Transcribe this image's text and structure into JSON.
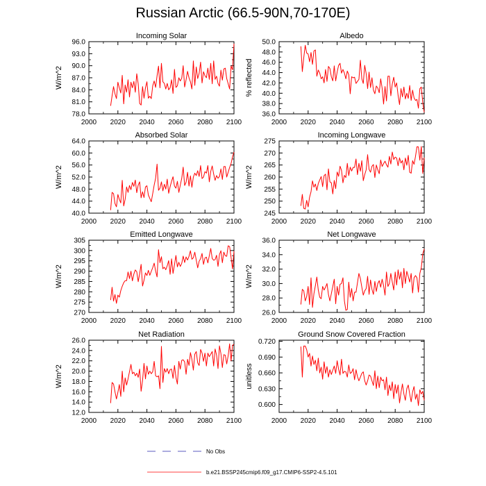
{
  "title": "Russian Arctic (66.5-90N,70-170E)",
  "legend": {
    "obs_label": "No Obs",
    "model_label": "b.e21.BSSP245cmip6.f09_g17.CMIP6-SSP2-4.5.101",
    "obs_color": "#2222aa",
    "model_color": "#ff0000"
  },
  "chart_data": [
    {
      "type": "line",
      "title": "Incoming Solar",
      "ylabel": "W/m^2",
      "xlim": [
        2000,
        2100
      ],
      "xticks": [
        2000,
        2020,
        2040,
        2060,
        2080,
        2100
      ],
      "ylim": [
        78,
        96
      ],
      "yticks": [
        "96.0",
        "93.0",
        "90.0",
        "87.0",
        "84.0",
        "81.0",
        "78.0"
      ],
      "ytick_values": [
        96,
        93,
        90,
        87,
        84,
        81,
        78
      ],
      "x_start": 2015,
      "values": [
        80.0,
        82.5,
        84.8,
        83.0,
        81.8,
        85.9,
        84.5,
        83.2,
        87.6,
        80.5,
        85.2,
        83.4,
        86.5,
        82.2,
        85.9,
        84.5,
        86.1,
        83.4,
        88.0,
        85.5,
        80.6,
        80.2,
        84.8,
        81.9,
        84.5,
        86.0,
        81.9,
        82.4,
        81.8,
        85.0,
        86.2,
        84.6,
        87.5,
        89.9,
        84.5,
        90.6,
        86.0,
        85.6,
        84.2,
        85.6,
        84.0,
        84.5,
        86.5,
        83.1,
        89.1,
        84.6,
        85.0,
        87.0,
        86.2,
        86.9,
        90.0,
        84.7,
        86.5,
        88.6,
        87.0,
        86.0,
        84.2,
        91.2,
        85.1,
        89.7,
        86.8,
        88.1,
        90.9,
        85.7,
        88.5,
        87.5,
        87.0,
        89.4,
        86.6,
        90.6,
        85.5,
        91.2,
        86.6,
        87.4,
        85.6,
        84.9,
        88.9,
        86.4,
        89.2,
        89.4,
        86.8,
        85.5,
        84.2,
        89.9,
        89.0,
        95.5
      ]
    },
    {
      "type": "line",
      "title": "Albedo",
      "ylabel": "% reflected",
      "xlim": [
        2000,
        2100
      ],
      "xticks": [
        2000,
        2020,
        2040,
        2060,
        2080,
        2100
      ],
      "ylim": [
        36,
        50
      ],
      "yticks": [
        "50.0",
        "48.0",
        "46.0",
        "44.0",
        "42.0",
        "40.0",
        "38.0",
        "36.0"
      ],
      "ytick_values": [
        50,
        48,
        46,
        44,
        42,
        40,
        38,
        36
      ],
      "x_start": 2015,
      "values": [
        49.1,
        44.2,
        46.9,
        49.3,
        47.8,
        47.6,
        46.1,
        47.9,
        45.6,
        48.2,
        48.4,
        43.3,
        44.5,
        43.9,
        42.8,
        43.2,
        42.0,
        44.6,
        42.3,
        45.2,
        44.8,
        43.2,
        42.4,
        45.3,
        42.4,
        44.1,
        45.4,
        45.8,
        43.9,
        44.6,
        43.9,
        42.8,
        44.3,
        43.6,
        39.9,
        43.2,
        43.0,
        43.1,
        41.9,
        42.3,
        42.7,
        46.4,
        42.8,
        41.9,
        45.4,
        43.8,
        40.9,
        44.1,
        41.1,
        43.0,
        40.6,
        39.9,
        41.4,
        41.0,
        40.1,
        42.8,
        41.0,
        37.9,
        41.3,
        38.5,
        43.3,
        43.3,
        39.5,
        41.8,
        43.1,
        41.2,
        42.0,
        39.6,
        37.8,
        40.9,
        39.3,
        41.2,
        38.9,
        40.0,
        39.0,
        41.5,
        38.6,
        40.6,
        39.1,
        38.6,
        38.8,
        37.1,
        40.9,
        41.2,
        38.2,
        36.3
      ]
    },
    {
      "type": "line",
      "title": "Absorbed Solar",
      "ylabel": "W/m^2",
      "xlim": [
        2000,
        2100
      ],
      "xticks": [
        2000,
        2020,
        2040,
        2060,
        2080,
        2100
      ],
      "ylim": [
        40,
        64
      ],
      "yticks": [
        "64.0",
        "60.0",
        "56.0",
        "52.0",
        "48.0",
        "44.0",
        "40.0"
      ],
      "ytick_values": [
        64,
        60,
        56,
        52,
        48,
        44,
        40
      ],
      "x_start": 2015,
      "values": [
        41.0,
        46.9,
        46.5,
        43.2,
        42.1,
        46.2,
        44.6,
        43.4,
        50.9,
        42.4,
        44.6,
        48.7,
        46.9,
        49.2,
        47.8,
        50.2,
        48.9,
        51.0,
        46.8,
        49.3,
        50.4,
        45.1,
        47.1,
        45.2,
        48.7,
        49.1,
        46.0,
        44.9,
        43.8,
        46.5,
        49.3,
        51.6,
        56.3,
        47.6,
        48.3,
        50.4,
        47.4,
        49.6,
        48.0,
        51.3,
        46.6,
        48.8,
        50.6,
        52.1,
        49.0,
        48.3,
        50.6,
        46.9,
        49.3,
        51.6,
        55.3,
        49.2,
        50.3,
        53.6,
        49.0,
        52.4,
        48.6,
        52.0,
        53.3,
        52.5,
        54.1,
        52.2,
        55.8,
        51.5,
        52.0,
        53.8,
        53.3,
        55.8,
        50.4,
        53.9,
        55.7,
        53.0,
        50.9,
        52.5,
        51.6,
        52.2,
        54.7,
        51.2,
        55.5,
        55.5,
        52.0,
        53.6,
        55.2,
        56.5,
        58.7,
        60.3
      ]
    },
    {
      "type": "line",
      "title": "Incoming Longwave",
      "ylabel": "W/m^2",
      "xlim": [
        2000,
        2100
      ],
      "xticks": [
        2000,
        2020,
        2040,
        2060,
        2080,
        2100
      ],
      "ylim": [
        245,
        275
      ],
      "yticks": [
        "275",
        "270",
        "265",
        "260",
        "255",
        "250",
        "245"
      ],
      "ytick_values": [
        275,
        270,
        265,
        260,
        255,
        250,
        245
      ],
      "x_start": 2015,
      "values": [
        248.0,
        252.8,
        247.0,
        246.7,
        250.3,
        247.6,
        251.6,
        253.9,
        258.4,
        255.8,
        257.1,
        254.4,
        257.3,
        258.8,
        260.2,
        256.0,
        260.6,
        261.2,
        254.7,
        263.4,
        258.0,
        257.6,
        253.0,
        258.6,
        255.2,
        262.1,
        260.3,
        264.5,
        262.8,
        257.6,
        260.7,
        259.8,
        265.7,
        260.6,
        264.1,
        262.5,
        264.0,
        264.0,
        267.5,
        261.0,
        265.7,
        262.4,
        266.8,
        258.5,
        261.0,
        263.0,
        269.3,
        263.2,
        262.0,
        264.5,
        265.2,
        259.8,
        265.0,
        263.0,
        261.4,
        267.1,
        264.4,
        265.6,
        266.6,
        265.1,
        264.1,
        268.6,
        265.4,
        270.4,
        267.3,
        268.3,
        267.9,
        264.7,
        268.0,
        265.8,
        266.9,
        263.0,
        267.9,
        264.9,
        269.0,
        262.0,
        261.6,
        266.8,
        265.3,
        268.6,
        272.6,
        272.5,
        267.0,
        272.7,
        261.5,
        268.1
      ]
    },
    {
      "type": "line",
      "title": "Emitted Longwave",
      "ylabel": "W/m^2",
      "xlim": [
        2000,
        2100
      ],
      "xticks": [
        2000,
        2020,
        2040,
        2060,
        2080,
        2100
      ],
      "ylim": [
        270,
        305
      ],
      "yticks": [
        "305",
        "300",
        "295",
        "290",
        "285",
        "280",
        "275",
        "270"
      ],
      "ytick_values": [
        305,
        300,
        295,
        290,
        285,
        280,
        275,
        270
      ],
      "x_start": 2015,
      "values": [
        276.0,
        282.2,
        275.5,
        278.7,
        274.4,
        278.4,
        277.4,
        280.6,
        282.7,
        284.4,
        285.4,
        285.4,
        289.6,
        286.4,
        290.0,
        285.3,
        288.6,
        290.6,
        289.7,
        284.9,
        288.8,
        293.3,
        282.8,
        285.6,
        289.2,
        287.9,
        290.4,
        288.0,
        289.9,
        291.7,
        293.9,
        290.1,
        287.2,
        300.4,
        294.1,
        297.0,
        291.2,
        291.9,
        290.7,
        292.6,
        295.1,
        288.5,
        296.0,
        288.9,
        293.1,
        297.6,
        292.1,
        294.3,
        292.3,
        293.8,
        297.3,
        294.2,
        296.9,
        295.4,
        297.2,
        299.9,
        295.8,
        296.5,
        299.2,
        295.4,
        291.6,
        294.8,
        296.1,
        298.6,
        293.3,
        296.4,
        296.8,
        294.0,
        297.5,
        301.0,
        296.2,
        295.3,
        295.6,
        297.7,
        292.3,
        298.1,
        299.9,
        294.1,
        299.2,
        297.5,
        297.2,
        302.3,
        301.9,
        296.7,
        291.1,
        299.7
      ]
    },
    {
      "type": "line",
      "title": "Net Longwave",
      "ylabel": "W/m^2",
      "xlim": [
        2000,
        2100
      ],
      "xticks": [
        2000,
        2020,
        2040,
        2060,
        2080,
        2100
      ],
      "ylim": [
        26,
        36
      ],
      "yticks": [
        "36.0",
        "34.0",
        "32.0",
        "30.0",
        "28.0",
        "26.0"
      ],
      "ytick_values": [
        36,
        34,
        32,
        30,
        28,
        26
      ],
      "x_start": 2015,
      "values": [
        27.1,
        29.2,
        29.0,
        27.6,
        28.2,
        29.6,
        27.1,
        30.8,
        26.7,
        28.6,
        29.7,
        30.9,
        29.1,
        28.1,
        27.9,
        29.6,
        29.1,
        29.5,
        30.0,
        28.5,
        27.6,
        28.6,
        29.6,
        30.6,
        27.2,
        29.6,
        28.4,
        29.9,
        30.0,
        30.8,
        27.6,
        26.3,
        26.4,
        30.2,
        28.1,
        29.3,
        27.6,
        28.8,
        28.8,
        30.1,
        31.4,
        30.7,
        29.5,
        28.4,
        29.0,
        29.3,
        31.0,
        28.5,
        30.5,
        29.2,
        28.5,
        30.3,
        28.9,
        30.0,
        30.4,
        29.5,
        30.6,
        29.7,
        28.4,
        31.6,
        29.6,
        30.0,
        31.4,
        30.2,
        29.1,
        31.6,
        29.8,
        31.9,
        30.6,
        31.6,
        29.4,
        32.1,
        30.0,
        31.7,
        31.0,
        30.2,
        31.4,
        28.7,
        30.8,
        31.1,
        30.8,
        28.8,
        31.4,
        32.2,
        34.1,
        34.8
      ]
    },
    {
      "type": "line",
      "title": "Net Radiation",
      "ylabel": "W/m^2",
      "xlim": [
        2000,
        2100
      ],
      "xticks": [
        2000,
        2020,
        2040,
        2060,
        2080,
        2100
      ],
      "ylim": [
        12,
        26
      ],
      "yticks": [
        "26.0",
        "24.0",
        "22.0",
        "20.0",
        "18.0",
        "16.0",
        "14.0",
        "12.0"
      ],
      "ytick_values": [
        26,
        24,
        22,
        20,
        18,
        16,
        14,
        12
      ],
      "x_start": 2015,
      "values": [
        13.8,
        17.8,
        17.5,
        16.0,
        14.6,
        15.9,
        17.4,
        15.1,
        20.0,
        16.0,
        18.7,
        17.3,
        18.5,
        19.9,
        21.3,
        19.5,
        19.8,
        19.1,
        19.6,
        18.8,
        20.4,
        16.1,
        18.2,
        21.5,
        18.5,
        21.0,
        19.4,
        20.0,
        19.5,
        19.9,
        21.9,
        19.1,
        18.9,
        19.1,
        16.6,
        24.8,
        17.8,
        20.5,
        19.8,
        20.5,
        19.5,
        20.3,
        20.4,
        18.6,
        21.1,
        18.8,
        17.5,
        21.9,
        20.4,
        22.1,
        22.2,
        21.8,
        19.4,
        22.3,
        21.1,
        23.6,
        22.3,
        20.2,
        23.3,
        23.8,
        21.6,
        21.1,
        24.2,
        23.5,
        21.9,
        23.5,
        21.0,
        23.5,
        22.8,
        23.3,
        23.8,
        21.0,
        24.3,
        23.1,
        20.5,
        24.9,
        23.4,
        20.7,
        23.2,
        23.1,
        21.4,
        23.0,
        25.3,
        22.0,
        25.0,
        25.2
      ]
    },
    {
      "type": "line",
      "title": "Ground Snow Covered Fraction",
      "ylabel": "unitless",
      "xlim": [
        2000,
        2100
      ],
      "xticks": [
        2000,
        2020,
        2040,
        2060,
        2080,
        2100
      ],
      "ylim": [
        0.585,
        0.722
      ],
      "yticks": [
        "0.720",
        "0.690",
        "0.660",
        "0.630",
        "0.600"
      ],
      "ytick_values": [
        0.72,
        0.69,
        0.66,
        0.63,
        0.6
      ],
      "x_start": 2015,
      "values": [
        0.71,
        0.652,
        0.711,
        0.711,
        0.704,
        0.69,
        0.697,
        0.673,
        0.692,
        0.676,
        0.684,
        0.664,
        0.688,
        0.66,
        0.671,
        0.648,
        0.681,
        0.659,
        0.672,
        0.652,
        0.666,
        0.657,
        0.665,
        0.673,
        0.659,
        0.683,
        0.667,
        0.656,
        0.686,
        0.659,
        0.663,
        0.662,
        0.652,
        0.675,
        0.659,
        0.661,
        0.668,
        0.647,
        0.666,
        0.653,
        0.645,
        0.652,
        0.659,
        0.662,
        0.645,
        0.637,
        0.645,
        0.656,
        0.654,
        0.645,
        0.636,
        0.664,
        0.63,
        0.654,
        0.632,
        0.652,
        0.645,
        0.647,
        0.628,
        0.652,
        0.617,
        0.637,
        0.626,
        0.643,
        0.611,
        0.638,
        0.621,
        0.637,
        0.603,
        0.623,
        0.639,
        0.62,
        0.608,
        0.63,
        0.637,
        0.62,
        0.605,
        0.624,
        0.634,
        0.61,
        0.62,
        0.598,
        0.628,
        0.62,
        0.625,
        0.608
      ]
    }
  ]
}
